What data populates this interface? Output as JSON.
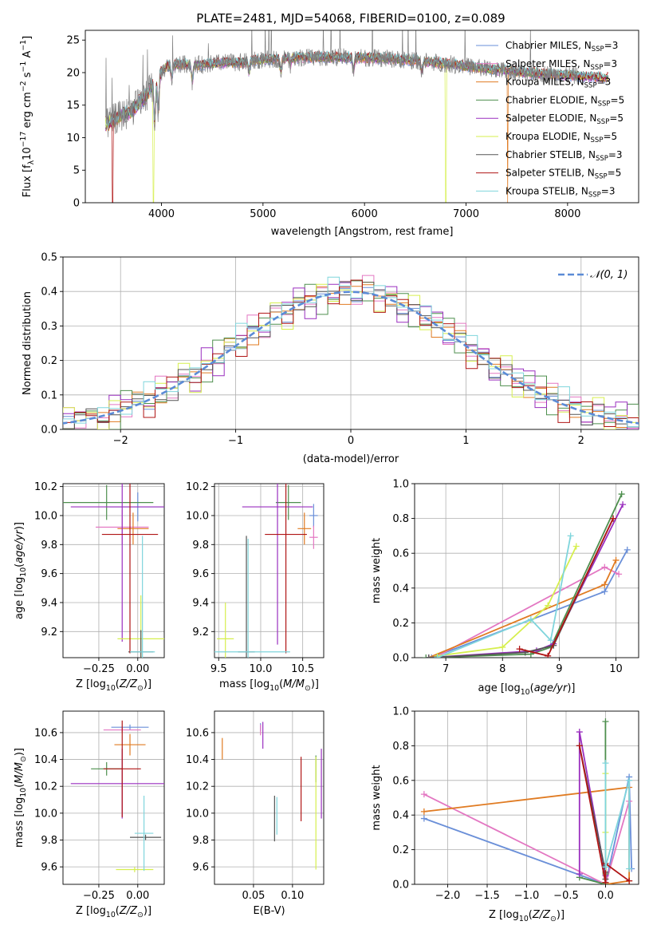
{
  "figure_title": "PLATE=2481, MJD=54068, FIBERID=0100, z=0.089",
  "colors": {
    "Chabrier MILES": "#6a8fd8",
    "Salpeter MILES": "#e377c2",
    "Kroupa MILES": "#e07b22",
    "Chabrier ELODIE": "#4e8f4e",
    "Salpeter ELODIE": "#9a2fbf",
    "Kroupa ELODIE": "#d6ef4e",
    "Chabrier STELIB": "#555555",
    "Salpeter STELIB": "#b01515",
    "Kroupa STELIB": "#7fd5dc",
    "data_spectrum": "#808080",
    "gaussian": "#5b8bd6"
  },
  "chart_data": [
    {
      "id": "spectrum",
      "type": "line",
      "xlabel": "wavelength [Angstrom, rest frame]",
      "ylabel": "Flux [f$_\\lambda$10$^{-17}$ erg cm$^{-2}$ s$^{-1}$ A$^{-1}$]",
      "xlim": [
        3250,
        8700
      ],
      "ylim": [
        0,
        26.5
      ],
      "xticks": [
        4000,
        5000,
        6000,
        7000,
        8000
      ],
      "yticks": [
        0,
        5,
        10,
        15,
        20,
        25
      ],
      "grid": false,
      "legend_position": "right",
      "legend": [
        {
          "prefix": "Chabrier MILES, N",
          "sub": "SSP",
          "suffix": "=3",
          "series": "Chabrier MILES"
        },
        {
          "prefix": "Salpeter MILES, N",
          "sub": "SSP",
          "suffix": "=3",
          "series": "Salpeter MILES"
        },
        {
          "prefix": "Kroupa MILES, N",
          "sub": "SSP",
          "suffix": "=3",
          "series": "Kroupa MILES"
        },
        {
          "prefix": "Chabrier ELODIE, N",
          "sub": "SSP",
          "suffix": "=5",
          "series": "Chabrier ELODIE"
        },
        {
          "prefix": "Salpeter ELODIE, N",
          "sub": "SSP",
          "suffix": "=5",
          "series": "Salpeter ELODIE"
        },
        {
          "prefix": "Kroupa ELODIE, N",
          "sub": "SSP",
          "suffix": "=5",
          "series": "Kroupa ELODIE"
        },
        {
          "prefix": "Chabrier STELIB, N",
          "sub": "SSP",
          "suffix": "=3",
          "series": "Chabrier STELIB"
        },
        {
          "prefix": "Salpeter STELIB, N",
          "sub": "SSP",
          "suffix": "=5",
          "series": "Salpeter STELIB"
        },
        {
          "prefix": "Kroupa STELIB, N",
          "sub": "SSP",
          "suffix": "=3",
          "series": "Kroupa STELIB"
        }
      ],
      "continuum": {
        "x": [
          3450,
          3550,
          3700,
          3850,
          3950,
          4050,
          4200,
          4400,
          4600,
          4800,
          5000,
          5300,
          5600,
          6000,
          6400,
          6800,
          7200,
          7600,
          8000,
          8400
        ],
        "y": [
          12.0,
          13.0,
          14.0,
          16.5,
          19.0,
          21.0,
          21.3,
          21.2,
          21.5,
          21.6,
          22.0,
          22.3,
          22.4,
          22.3,
          22.0,
          21.4,
          20.6,
          20.0,
          19.6,
          19.2
        ]
      },
      "absorption_lines": [
        {
          "x": 3934,
          "depth": 6
        },
        {
          "x": 3969,
          "depth": 5
        },
        {
          "x": 4102,
          "depth": 2
        },
        {
          "x": 4304,
          "depth": 2.5
        },
        {
          "x": 4862,
          "depth": 1.5
        },
        {
          "x": 5175,
          "depth": 2
        },
        {
          "x": 5270,
          "depth": 1
        },
        {
          "x": 5890,
          "depth": 2
        },
        {
          "x": 6563,
          "depth": 1.5
        }
      ],
      "dropouts": [
        {
          "x": 3520,
          "series": "Salpeter STELIB"
        },
        {
          "x": 3920,
          "series": "Kroupa ELODIE"
        },
        {
          "x": 6800,
          "series": "Kroupa ELODIE"
        },
        {
          "x": 7410,
          "series": "Kroupa MILES"
        }
      ],
      "data_x_range": [
        3450,
        8100
      ],
      "model_x_range": [
        3450,
        8400
      ]
    },
    {
      "id": "residuals",
      "type": "step",
      "xlabel": "(data-model)/error",
      "ylabel": "Normed distribution",
      "xlim": [
        -2.5,
        2.5
      ],
      "ylim": [
        0,
        0.5
      ],
      "xticks": [
        -2,
        -1,
        0,
        1,
        2
      ],
      "xticklabels": [
        "−2",
        "−1",
        "0",
        "1",
        "2"
      ],
      "yticks": [
        0.0,
        0.1,
        0.2,
        0.3,
        0.4,
        0.5
      ],
      "yticklabels": [
        "0.0",
        "0.1",
        "0.2",
        "0.3",
        "0.4",
        "0.5"
      ],
      "grid": true,
      "legend_position": "top-right",
      "legend_label": "𝒩(0, 1)",
      "bin_width": 0.1,
      "series": [
        {
          "name": "Chabrier MILES",
          "offsets": [
            0.01,
            -0.02,
            0.01,
            0.0
          ]
        },
        {
          "name": "Salpeter MILES",
          "offsets": [
            -0.02,
            0.03,
            -0.01,
            0.02
          ]
        },
        {
          "name": "Kroupa MILES",
          "offsets": [
            0.02,
            0.0,
            -0.02,
            0.01
          ]
        },
        {
          "name": "Chabrier ELODIE",
          "offsets": [
            -0.01,
            0.02,
            0.03,
            -0.03
          ]
        },
        {
          "name": "Salpeter ELODIE",
          "offsets": [
            0.03,
            -0.03,
            0.0,
            0.02
          ]
        },
        {
          "name": "Kroupa ELODIE",
          "offsets": [
            0.0,
            0.03,
            -0.03,
            0.01
          ]
        },
        {
          "name": "Chabrier STELIB",
          "offsets": [
            0.02,
            0.01,
            -0.01,
            -0.02
          ]
        },
        {
          "name": "Salpeter STELIB",
          "offsets": [
            -0.03,
            0.01,
            0.02,
            0.0
          ]
        },
        {
          "name": "Kroupa STELIB",
          "offsets": [
            0.01,
            -0.01,
            0.0,
            0.03
          ]
        }
      ]
    },
    {
      "id": "age-vs-Z",
      "type": "errorbar",
      "xlabel": "Z [log$_{10}$(Z/Z$_\\odot$)]",
      "ylabel": "age  [log$_{10}$(age/yr)]",
      "xlim": [
        -0.48,
        0.17
      ],
      "ylim": [
        9.02,
        10.22
      ],
      "xticks": [
        -0.25,
        0.0
      ],
      "xticklabels": [
        "−0.25",
        "0.00"
      ],
      "yticks": [
        9.2,
        9.4,
        9.6,
        9.8,
        10.0,
        10.2
      ],
      "yticklabels": [
        "9.2",
        "9.4",
        "9.6",
        "9.8",
        "10.0",
        "10.2"
      ],
      "grid": true,
      "points": [
        {
          "series": "Chabrier MILES",
          "x": 0.0,
          "y": 10.06,
          "xerr": 0.18,
          "yerr": 0.1
        },
        {
          "series": "Salpeter MILES",
          "x": -0.1,
          "y": 9.92,
          "xerr": 0.17,
          "yerr": 0.12
        },
        {
          "series": "Kroupa MILES",
          "x": -0.03,
          "y": 9.91,
          "xerr": 0.1,
          "yerr": 0.11
        },
        {
          "series": "Chabrier ELODIE",
          "x": -0.2,
          "y": 10.09,
          "xerr": 0.3,
          "yerr": 0.12
        },
        {
          "series": "Salpeter ELODIE",
          "x": -0.1,
          "y": 10.06,
          "xerr": 0.33,
          "yerr": 0.93
        },
        {
          "series": "Kroupa ELODIE",
          "x": 0.02,
          "y": 9.15,
          "xerr": 0.15,
          "yerr": 0.3
        },
        {
          "series": "Chabrier STELIB",
          "x": 0.02,
          "y": 9.06,
          "xerr": 0.08,
          "yerr": 0.15
        },
        {
          "series": "Salpeter STELIB",
          "x": -0.05,
          "y": 9.87,
          "xerr": 0.18,
          "yerr": 0.82
        },
        {
          "series": "Kroupa STELIB",
          "x": 0.03,
          "y": 9.06,
          "xerr": 0.08,
          "yerr": 0.8
        }
      ]
    },
    {
      "id": "age-vs-mass",
      "type": "errorbar",
      "xlabel": "mass [log$_{10}$(M/M$_\\odot$)]",
      "xlim": [
        9.45,
        10.75
      ],
      "ylim": [
        9.02,
        10.22
      ],
      "xticks": [
        9.5,
        10.0,
        10.5
      ],
      "xticklabels": [
        "9.5",
        "10.0",
        "10.5"
      ],
      "yticks": [
        9.2,
        9.4,
        9.6,
        9.8,
        10.0,
        10.2
      ],
      "yticklabels": [
        "9.2",
        "9.4",
        "9.6",
        "9.8",
        "10.0",
        "10.2"
      ],
      "grid": true,
      "points": [
        {
          "series": "Chabrier MILES",
          "x": 10.63,
          "y": 10.0,
          "xerr": 0.05,
          "yerr": 0.08
        },
        {
          "series": "Salpeter MILES",
          "x": 10.63,
          "y": 9.85,
          "xerr": 0.05,
          "yerr": 0.08
        },
        {
          "series": "Kroupa MILES",
          "x": 10.52,
          "y": 9.91,
          "xerr": 0.08,
          "yerr": 0.11
        },
        {
          "series": "Chabrier ELODIE",
          "x": 10.33,
          "y": 10.09,
          "xerr": 0.15,
          "yerr": 0.12
        },
        {
          "series": "Salpeter ELODIE",
          "x": 10.2,
          "y": 10.06,
          "xerr": 0.42,
          "yerr": 0.95
        },
        {
          "series": "Kroupa ELODIE",
          "x": 9.58,
          "y": 9.15,
          "xerr": 0.1,
          "yerr": 0.25
        },
        {
          "series": "Chabrier STELIB",
          "x": 9.83,
          "y": 9.06,
          "xerr": 0.1,
          "yerr": 0.8
        },
        {
          "series": "Salpeter STELIB",
          "x": 10.3,
          "y": 9.87,
          "xerr": 0.25,
          "yerr": 0.82
        },
        {
          "series": "Kroupa STELIB",
          "x": 9.85,
          "y": 9.06,
          "xerr": 0.5,
          "yerr": 0.78
        }
      ]
    },
    {
      "id": "mass-weight-vs-age",
      "type": "line",
      "xlabel": "age  [log$_{10}$(age/yr)]",
      "ylabel": "mass weight",
      "xlim": [
        6.45,
        10.4
      ],
      "ylim": [
        0,
        1
      ],
      "xticks": [
        7,
        8,
        9,
        10
      ],
      "xticklabels": [
        "7",
        "8",
        "9",
        "10"
      ],
      "yticks": [
        0.0,
        0.2,
        0.4,
        0.6,
        0.8,
        1.0
      ],
      "yticklabels": [
        "0.0",
        "0.2",
        "0.4",
        "0.6",
        "0.8",
        "1.0"
      ],
      "grid": true,
      "series": [
        {
          "name": "Chabrier MILES",
          "x": [
            6.75,
            9.8,
            10.2
          ],
          "y": [
            0.0,
            0.38,
            0.62
          ]
        },
        {
          "name": "Salpeter MILES",
          "x": [
            6.8,
            9.8,
            10.05
          ],
          "y": [
            0.0,
            0.52,
            0.48
          ]
        },
        {
          "name": "Kroupa MILES",
          "x": [
            6.7,
            9.8,
            10.0
          ],
          "y": [
            0.0,
            0.42,
            0.56
          ]
        },
        {
          "name": "Chabrier ELODIE",
          "x": [
            6.65,
            8.5,
            8.85,
            10.1
          ],
          "y": [
            0.0,
            0.02,
            0.06,
            0.94
          ]
        },
        {
          "name": "Salpeter ELODIE",
          "x": [
            6.7,
            8.6,
            8.9,
            10.12
          ],
          "y": [
            0.0,
            0.04,
            0.08,
            0.88
          ]
        },
        {
          "name": "Kroupa ELODIE",
          "x": [
            6.85,
            8.0,
            8.8,
            9.3
          ],
          "y": [
            0.01,
            0.06,
            0.3,
            0.64
          ]
        },
        {
          "name": "Chabrier STELIB",
          "x": [
            6.7,
            8.4,
            8.9,
            9.95
          ],
          "y": [
            0.0,
            0.03,
            0.07,
            0.8
          ]
        },
        {
          "name": "Salpeter STELIB",
          "x": [
            8.3,
            8.8,
            9.95
          ],
          "y": [
            0.05,
            0.01,
            0.8
          ]
        },
        {
          "name": "Kroupa STELIB",
          "x": [
            6.85,
            8.5,
            8.85,
            9.2
          ],
          "y": [
            0.0,
            0.22,
            0.1,
            0.7
          ]
        }
      ]
    },
    {
      "id": "mass-vs-Z",
      "type": "errorbar",
      "xlabel": "Z [log$_{10}$(Z/Z$_\\odot$)]",
      "ylabel": "mass [log$_{10}$(M/M$_\\odot$)]",
      "xlim": [
        -0.48,
        0.17
      ],
      "ylim": [
        9.47,
        10.76
      ],
      "xticks": [
        -0.25,
        0.0
      ],
      "xticklabels": [
        "−0.25",
        "0.00"
      ],
      "yticks": [
        9.6,
        9.8,
        10.0,
        10.2,
        10.4,
        10.6
      ],
      "yticklabels": [
        "9.6",
        "9.8",
        "10.0",
        "10.2",
        "10.4",
        "10.6"
      ],
      "grid": true,
      "points": [
        {
          "series": "Chabrier MILES",
          "x": -0.05,
          "y": 10.64,
          "xerr": 0.12,
          "yerr": 0.02
        },
        {
          "series": "Salpeter MILES",
          "x": -0.1,
          "y": 10.62,
          "xerr": 0.12,
          "yerr": 0.02
        },
        {
          "series": "Kroupa MILES",
          "x": -0.05,
          "y": 10.51,
          "xerr": 0.1,
          "yerr": 0.08
        },
        {
          "series": "Chabrier ELODIE",
          "x": -0.2,
          "y": 10.33,
          "xerr": 0.1,
          "yerr": 0.05
        },
        {
          "series": "Salpeter ELODIE",
          "x": -0.1,
          "y": 10.22,
          "xerr": 0.33,
          "yerr": 0.26
        },
        {
          "series": "Kroupa ELODIE",
          "x": -0.02,
          "y": 9.58,
          "xerr": 0.12,
          "yerr": 0.02
        },
        {
          "series": "Chabrier STELIB",
          "x": 0.05,
          "y": 9.82,
          "xerr": 0.1,
          "yerr": 0.02
        },
        {
          "series": "Salpeter STELIB",
          "x": -0.1,
          "y": 10.33,
          "xerr": 0.12,
          "yerr": 0.36
        },
        {
          "series": "Kroupa STELIB",
          "x": 0.04,
          "y": 9.85,
          "xerr": 0.06,
          "yerr": 0.28
        }
      ]
    },
    {
      "id": "mass-vs-EBV",
      "type": "errorbar",
      "xlabel": "E(B-V)",
      "xlim": [
        0.0,
        0.14
      ],
      "ylim": [
        9.47,
        10.76
      ],
      "xticks": [
        0.05,
        0.1
      ],
      "xticklabels": [
        "0.05",
        "0.10"
      ],
      "yticks": [
        9.6,
        9.8,
        10.0,
        10.2,
        10.4,
        10.6
      ],
      "yticklabels": [
        "9.6",
        "9.8",
        "10.0",
        "10.2",
        "10.4",
        "10.6"
      ],
      "grid": true,
      "points": [
        {
          "series": "Chabrier MILES",
          "x": 0.059,
          "y": 10.64,
          "yerr": 0.03
        },
        {
          "series": "Salpeter MILES",
          "x": 0.059,
          "y": 10.62,
          "yerr": 0.04
        },
        {
          "series": "Kroupa MILES",
          "x": 0.01,
          "y": 10.48,
          "yerr": 0.08
        },
        {
          "series": "Chabrier ELODIE",
          "x": 0.13,
          "y": 10.33,
          "yerr": 0.1
        },
        {
          "series": "Salpeter ELODIE",
          "x": 0.062,
          "y": 10.58,
          "yerr": 0.1
        },
        {
          "series": "Kroupa ELODIE",
          "x": 0.13,
          "y": 10.0,
          "yerr": 0.42
        },
        {
          "series": "Chabrier STELIB",
          "x": 0.077,
          "y": 9.96,
          "yerr": 0.17
        },
        {
          "series": "Salpeter STELIB",
          "x": 0.111,
          "y": 10.18,
          "yerr": 0.24
        },
        {
          "series": "Kroupa STELIB",
          "x": 0.08,
          "y": 9.98,
          "yerr": 0.14
        }
      ],
      "extra": [
        {
          "series": "Salpeter ELODIE",
          "x": 0.137,
          "y": 10.22,
          "yerr": 0.26
        }
      ]
    },
    {
      "id": "mass-weight-vs-Z",
      "type": "line",
      "xlabel": "Z [log$_{10}$(Z/Z$_\\odot$)]",
      "ylabel": "mass weight",
      "xlim": [
        -2.42,
        0.42
      ],
      "ylim": [
        0,
        1
      ],
      "xticks": [
        -2.0,
        -1.5,
        -1.0,
        -0.5,
        0.0
      ],
      "xticklabels": [
        "−2.0",
        "−1.5",
        "−1.0",
        "−0.5",
        "0.0"
      ],
      "yticks": [
        0.0,
        0.2,
        0.4,
        0.6,
        0.8,
        1.0
      ],
      "yticklabels": [
        "0.0",
        "0.2",
        "0.4",
        "0.6",
        "0.8",
        "1.0"
      ],
      "grid": true,
      "series": [
        {
          "name": "Chabrier MILES",
          "x": [
            -2.3,
            0.0,
            0.3,
            0.33
          ],
          "y": [
            0.38,
            0.0,
            0.62,
            0.09
          ]
        },
        {
          "name": "Salpeter MILES",
          "x": [
            -2.3,
            0.0,
            0.3
          ],
          "y": [
            0.52,
            0.0,
            0.48
          ]
        },
        {
          "name": "Kroupa MILES",
          "x": [
            -2.3,
            0.3,
            0.3,
            0.0
          ],
          "y": [
            0.42,
            0.56,
            0.02,
            0.0
          ]
        },
        {
          "name": "Chabrier ELODIE",
          "x": [
            -0.33,
            0.0,
            0.0,
            0.0
          ],
          "y": [
            0.04,
            0.0,
            0.94,
            0.06
          ]
        },
        {
          "name": "Salpeter ELODIE",
          "x": [
            -0.33,
            -0.33,
            0.0,
            0.0
          ],
          "y": [
            0.06,
            0.88,
            0.05,
            0.01
          ]
        },
        {
          "name": "Kroupa ELODIE",
          "x": [
            0.0,
            0.0,
            0.0
          ],
          "y": [
            0.01,
            0.3,
            0.64
          ]
        },
        {
          "name": "Chabrier STELIB",
          "x": [
            -0.33,
            0.0,
            0.0
          ],
          "y": [
            0.8,
            0.07,
            0.03
          ]
        },
        {
          "name": "Salpeter STELIB",
          "x": [
            -0.33,
            0.0,
            0.0,
            0.3
          ],
          "y": [
            0.8,
            0.01,
            0.12,
            0.02
          ]
        },
        {
          "name": "Kroupa STELIB",
          "x": [
            0.0,
            0.0,
            0.3,
            0.3
          ],
          "y": [
            0.7,
            0.1,
            0.6,
            0.09
          ]
        }
      ]
    }
  ]
}
